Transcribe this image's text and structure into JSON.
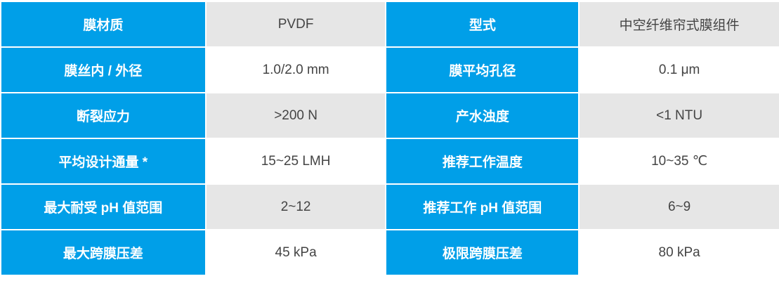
{
  "colors": {
    "header": "#009fe8",
    "stripe": "#e6e6e6"
  },
  "rows": [
    {
      "k1": "膜材质",
      "v1": "PVDF",
      "k2": "型式",
      "v2": "中空纤维帘式膜组件"
    },
    {
      "k1": "膜丝内 / 外径",
      "v1": "1.0/2.0 mm",
      "k2": "膜平均孔径",
      "v2": "0.1 μm"
    },
    {
      "k1": "断裂应力",
      "v1": ">200 N",
      "k2": "产水浊度",
      "v2": "<1 NTU"
    },
    {
      "k1": "平均设计通量 *",
      "v1": "15~25 LMH",
      "k2": "推荐工作温度",
      "v2": "10~35 ℃"
    },
    {
      "k1": "最大耐受 pH 值范围",
      "v1": "2~12",
      "k2": "推荐工作 pH 值范围",
      "v2": "6~9"
    },
    {
      "k1": "最大跨膜压差",
      "v1": "45 kPa",
      "k2": "极限跨膜压差",
      "v2": "80 kPa"
    }
  ]
}
